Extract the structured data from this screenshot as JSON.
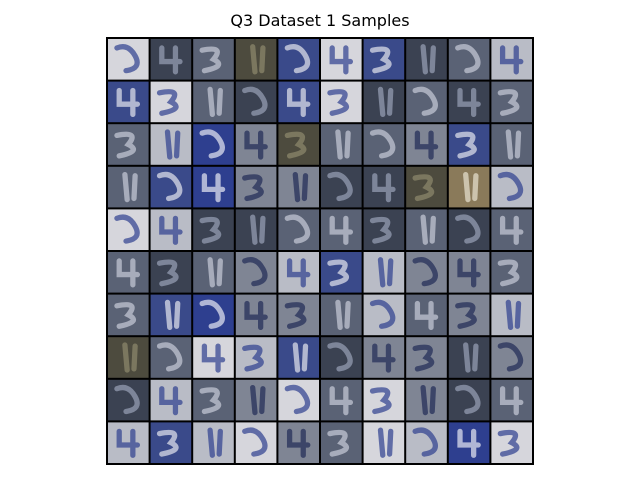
{
  "title": "Q3 Dataset 1 Samples",
  "grid": {
    "rows": 10,
    "cols": 10,
    "tile_border_color": "#000000"
  },
  "palette": {
    "white": "#d6d6dc",
    "pale": "#b9bcc6",
    "gray": "#7f8594",
    "slate": "#5a6275",
    "dark": "#3b4252",
    "olive": "#4d4b3e",
    "navy": "#3a4a8a",
    "blue": "#2e3f8f",
    "tan": "#8a7a5a"
  },
  "tiles": [
    [
      "white",
      "dark",
      "slate",
      "olive",
      "navy",
      "white",
      "navy",
      "dark",
      "slate",
      "pale"
    ],
    [
      "navy",
      "white",
      "slate",
      "dark",
      "navy",
      "white",
      "dark",
      "slate",
      "dark",
      "slate"
    ],
    [
      "slate",
      "pale",
      "blue",
      "gray",
      "olive",
      "slate",
      "slate",
      "gray",
      "navy",
      "slate"
    ],
    [
      "slate",
      "navy",
      "blue",
      "gray",
      "gray",
      "dark",
      "dark",
      "olive",
      "tan",
      "pale"
    ],
    [
      "white",
      "pale",
      "dark",
      "dark",
      "slate",
      "slate",
      "dark",
      "slate",
      "dark",
      "slate"
    ],
    [
      "slate",
      "dark",
      "slate",
      "gray",
      "pale",
      "navy",
      "pale",
      "gray",
      "gray",
      "slate"
    ],
    [
      "slate",
      "navy",
      "blue",
      "gray",
      "gray",
      "slate",
      "pale",
      "slate",
      "gray",
      "pale"
    ],
    [
      "olive",
      "slate",
      "white",
      "pale",
      "navy",
      "dark",
      "gray",
      "gray",
      "dark",
      "gray"
    ],
    [
      "dark",
      "pale",
      "slate",
      "gray",
      "white",
      "slate",
      "white",
      "gray",
      "dark",
      "slate"
    ],
    [
      "pale",
      "navy",
      "pale",
      "white",
      "gray",
      "slate",
      "white",
      "pale",
      "blue",
      "white"
    ]
  ]
}
